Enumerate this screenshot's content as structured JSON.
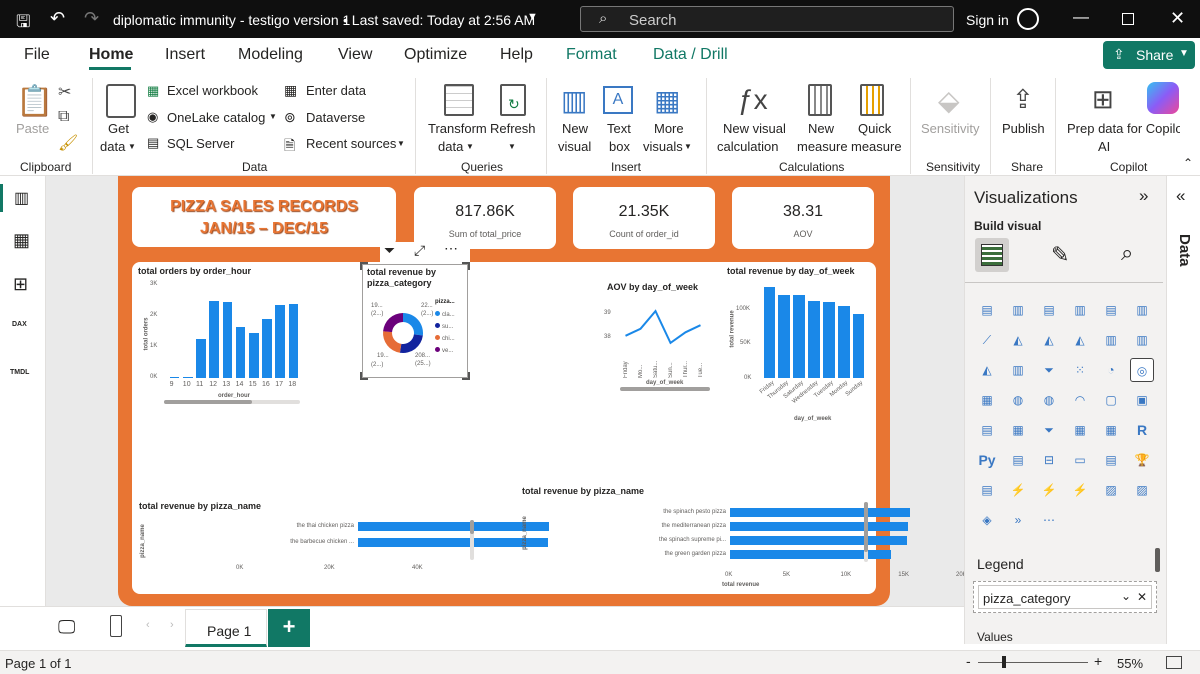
{
  "title": {
    "doc": "diplomatic immunity - testigo version 1",
    "saved": "• Last saved: Today at 2:56 AM",
    "search": "Search",
    "signin": "Sign in"
  },
  "menu": [
    "File",
    "Home",
    "Insert",
    "Modeling",
    "View",
    "Optimize",
    "Help",
    "Format",
    "Data / Drill"
  ],
  "share": "Share",
  "ribbon": {
    "paste": "Paste",
    "clipboard": "Clipboard",
    "getdata": "Get",
    "getdata2": "data",
    "excel": "Excel workbook",
    "onelake": "OneLake catalog",
    "sql": "SQL Server",
    "enter": "Enter data",
    "dataverse": "Dataverse",
    "recent": "Recent sources",
    "data": "Data",
    "transform": "Transform",
    "transform2": "data",
    "refresh": "Refresh",
    "queries": "Queries",
    "newvisual": "New",
    "newvisual2": "visual",
    "textbox": "Text",
    "textbox2": "box",
    "more": "More",
    "more2": "visuals",
    "insert": "Insert",
    "nvc": "New visual",
    "nvc2": "calculation",
    "nm": "New",
    "nm2": "measure",
    "qm": "Quick",
    "qm2": "measure",
    "calculations": "Calculations",
    "sensitivity": "Sensitivity",
    "sensgroup": "Sensitivity",
    "publish": "Publish",
    "sharegroup": "Share",
    "prep": "Prep data for Copilot",
    "prep2": "AI",
    "copilot": "Copilot"
  },
  "rail": [
    "report-view",
    "table-view",
    "model-view",
    "dax-view",
    "tmdl-view"
  ],
  "rail_labels": {
    "dax": "DAX",
    "tmdl": "TMDL"
  },
  "report": {
    "header1": "PIZZA SALES RECORDS",
    "header2": "JAN/15 – DEC/15",
    "kpis": [
      {
        "value": "817.86K",
        "label": "Sum of total_price"
      },
      {
        "value": "21.35K",
        "label": "Count of order_id"
      },
      {
        "value": "38.31",
        "label": "AOV"
      }
    ],
    "orders_title": "total orders by order_hour",
    "orders_y": "total orders",
    "orders_x": "order_hour",
    "orders_yt": [
      "3K",
      "2K",
      "1K",
      "0K"
    ],
    "donut_title1": "total revenue by",
    "donut_title2": "pizza_category",
    "donut_legend": "pizza...",
    "donut_items": [
      "cla...",
      "su...",
      "chi...",
      "ve..."
    ],
    "donut_labels": [
      "19...",
      "(2...)",
      "22...",
      "(2...)",
      "19...",
      "(2...)",
      "208...",
      "(25...)"
    ],
    "aov_title": "AOV by day_of_week",
    "aov_x": "day_of_week",
    "aov_yt": [
      "39",
      "38"
    ],
    "aov_days": [
      "Friday",
      "Mo...",
      "Satu...",
      "Sun...",
      "Thur...",
      "Tue..."
    ],
    "rev_day_title": "total revenue by day_of_week",
    "rev_day_y": "total revenue",
    "rev_day_x": "day_of_week",
    "rev_day_yt": [
      "100K",
      "50K",
      "0K"
    ],
    "rev_days": [
      "Friday",
      "Thursday",
      "Saturday",
      "Wednesday",
      "Tuesday",
      "Monday",
      "Sunday"
    ],
    "pn1_title": "total revenue by pizza_name",
    "pn1_y": "pizza_name",
    "pn1_xt": [
      "0K",
      "20K",
      "40K"
    ],
    "pn1_items": [
      "the thai chicken pizza",
      "the barbecue chicken ..."
    ],
    "pn2_title": "total revenue by pizza_name",
    "pn2_y": "pizza_name",
    "pn2_x": "total revenue",
    "pn2_xt": [
      "0K",
      "5K",
      "10K",
      "15K",
      "20K"
    ],
    "pn2_items": [
      "the spinach pesto pizza",
      "the mediterranean pizza",
      "the spinach supreme pi...",
      "the green garden pizza"
    ]
  },
  "chart_data": [
    {
      "type": "bar",
      "title": "total orders by order_hour",
      "xlabel": "order_hour",
      "ylabel": "total orders",
      "categories": [
        "9",
        "10",
        "11",
        "12",
        "13",
        "14",
        "15",
        "16",
        "17",
        "18"
      ],
      "values": [
        50,
        30,
        1250,
        2500,
        2450,
        1650,
        1450,
        1900,
        2350,
        2400
      ],
      "ylim": [
        0,
        3000
      ]
    },
    {
      "type": "pie",
      "title": "total revenue by pizza_category",
      "categories": [
        "cla...",
        "su...",
        "chi...",
        "ve..."
      ],
      "values": [
        220,
        208,
        195,
        193
      ]
    },
    {
      "type": "line",
      "title": "AOV by day_of_week",
      "xlabel": "day_of_week",
      "categories": [
        "Friday",
        "Mo...",
        "Satu...",
        "Sun...",
        "Thur...",
        "Tue..."
      ],
      "values": [
        38.3,
        38.5,
        39.0,
        38.1,
        38.4,
        38.6
      ],
      "ylim": [
        37.9,
        39.2
      ]
    },
    {
      "type": "bar",
      "title": "total revenue by day_of_week",
      "xlabel": "day_of_week",
      "ylabel": "total revenue",
      "categories": [
        "Friday",
        "Thursday",
        "Saturday",
        "Wednesday",
        "Tuesday",
        "Monday",
        "Sunday"
      ],
      "values": [
        136000,
        124000,
        123000,
        115000,
        114000,
        108000,
        95000
      ],
      "ylim": [
        0,
        140000
      ]
    },
    {
      "type": "bar",
      "title": "total revenue by pizza_name",
      "ylabel": "pizza_name",
      "categories": [
        "the thai chicken pizza",
        "the barbecue chicken ..."
      ],
      "values": [
        43000,
        42700
      ],
      "xlim": [
        0,
        45000
      ]
    },
    {
      "type": "bar",
      "title": "total revenue by pizza_name",
      "xlabel": "total revenue",
      "ylabel": "pizza_name",
      "categories": [
        "the spinach pesto pizza",
        "the mediterranean pizza",
        "the spinach supreme pi...",
        "the green garden pizza"
      ],
      "values": [
        15600,
        15400,
        15300,
        13900
      ],
      "xlim": [
        0,
        20000
      ]
    }
  ],
  "viz": {
    "title": "Visualizations",
    "build": "Build visual",
    "legend": "Legend",
    "field": "pizza_category",
    "values": "Values",
    "data": "Data",
    "icons": [
      "stacked-bar",
      "stacked-column",
      "clustered-bar",
      "clustered-column",
      "100-bar",
      "100-column",
      "line",
      "area",
      "stacked-area",
      "ribbon",
      "waterfall",
      "line-column",
      "line-stacked",
      "clustered-line",
      "funnel",
      "scatter",
      "pie",
      "donut",
      "treemap",
      "map",
      "filled-map",
      "gauge",
      "card",
      "multi-card",
      "kpi",
      "matrix",
      "slicer",
      "table",
      "table2",
      "r-visual",
      "python",
      "key-influencers",
      "decomposition",
      "qa",
      "smart-narrative",
      "trophy",
      "paginated",
      "power-apps",
      "power-automate",
      "arcgis",
      "image",
      "power-bi-visual",
      "diamond",
      "chevrons",
      "more"
    ]
  },
  "pages": {
    "page1": "Page 1",
    "add": "+"
  },
  "status": {
    "page": "Page 1 of 1",
    "zoom": "55%"
  }
}
